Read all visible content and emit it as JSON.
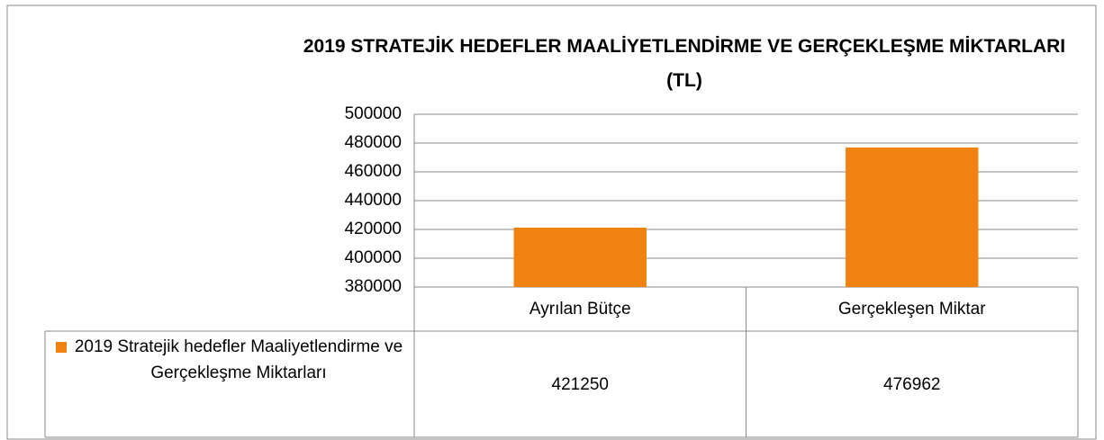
{
  "chart_data": {
    "type": "bar",
    "title": "2019 STRATEJİK HEDEFLER MAALİYETLENDİRME VE GERÇEKLEŞME MİKTARLARI (TL)",
    "categories": [
      "Ayrılan Bütçe",
      "Gerçekleşen Miktar"
    ],
    "series": [
      {
        "name": "2019 Stratejik hedefler Maaliyetlendirme ve Gerçekleşme Miktarları",
        "color": "#f0820f",
        "values": [
          421250,
          476962
        ]
      }
    ],
    "ylim": [
      380000,
      500000
    ],
    "yticks": [
      380000,
      400000,
      420000,
      440000,
      460000,
      480000,
      500000
    ],
    "grid": true,
    "data_table": true
  }
}
